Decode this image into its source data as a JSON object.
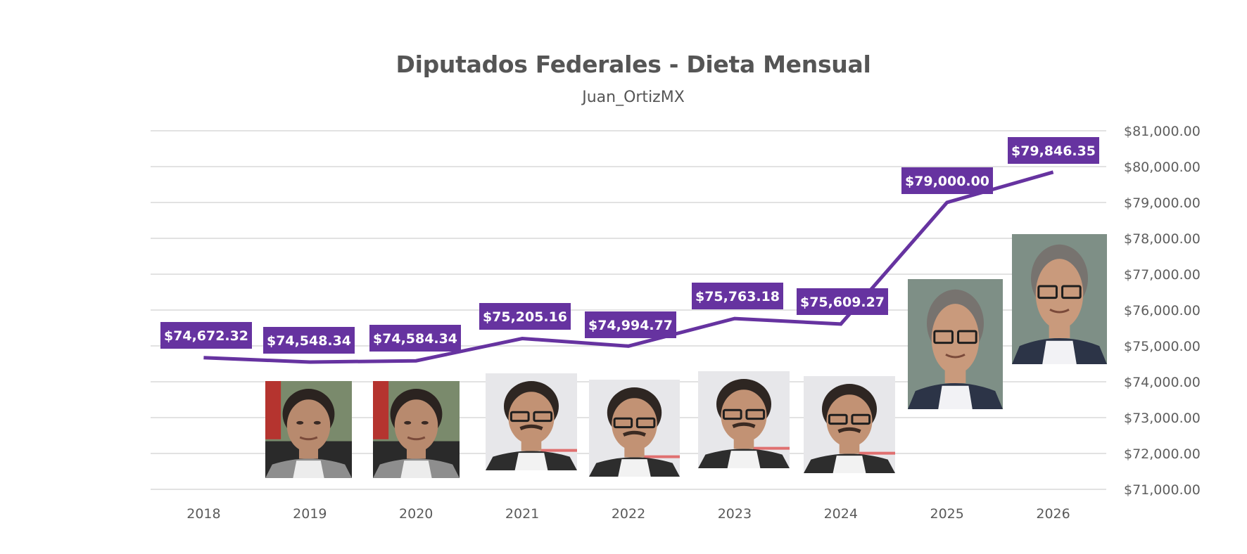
{
  "chart_data": {
    "type": "line",
    "title": "Diputados Federales - Dieta Mensual",
    "subtitle": "Juan_OrtizMX",
    "xlabel": "",
    "ylabel": "",
    "categories": [
      "2018",
      "2019",
      "2020",
      "2021",
      "2022",
      "2023",
      "2024",
      "2025",
      "2026"
    ],
    "series": [
      {
        "name": "Dieta Mensual",
        "color": "#6633a0",
        "values": [
          74672.32,
          74548.34,
          74584.34,
          75205.16,
          74994.77,
          75763.18,
          75609.27,
          79000.0,
          79846.35
        ],
        "data_labels": [
          "$74,672.32",
          "$74,548.34",
          "$74,584.34",
          "$75,205.16",
          "$74,994.77",
          "$75,763.18",
          "$75,609.27",
          "$79,000.00",
          "$79,846.35"
        ]
      }
    ],
    "ylim": [
      71000,
      81000
    ],
    "yticks": [
      81000,
      80000,
      79000,
      78000,
      77000,
      76000,
      75000,
      74000,
      73000,
      72000,
      71000
    ],
    "ytick_labels": [
      "$81,000.00",
      "$80,000.00",
      "$79,000.00",
      "$78,000.00",
      "$77,000.00",
      "$76,000.00",
      "$75,000.00",
      "$74,000.00",
      "$73,000.00",
      "$72,000.00",
      "$71,000.00"
    ],
    "y_axis_side": "right",
    "grid": true,
    "legend": "none",
    "label_color": "#6633a0",
    "label_text_color": "#ffffff",
    "photos": [
      {
        "year": "2019",
        "person": "person-a"
      },
      {
        "year": "2020",
        "person": "person-a"
      },
      {
        "year": "2021",
        "person": "person-b"
      },
      {
        "year": "2022",
        "person": "person-b"
      },
      {
        "year": "2023",
        "person": "person-b"
      },
      {
        "year": "2024",
        "person": "person-b"
      },
      {
        "year": "2025",
        "person": "person-c"
      },
      {
        "year": "2026",
        "person": "person-c"
      }
    ]
  }
}
